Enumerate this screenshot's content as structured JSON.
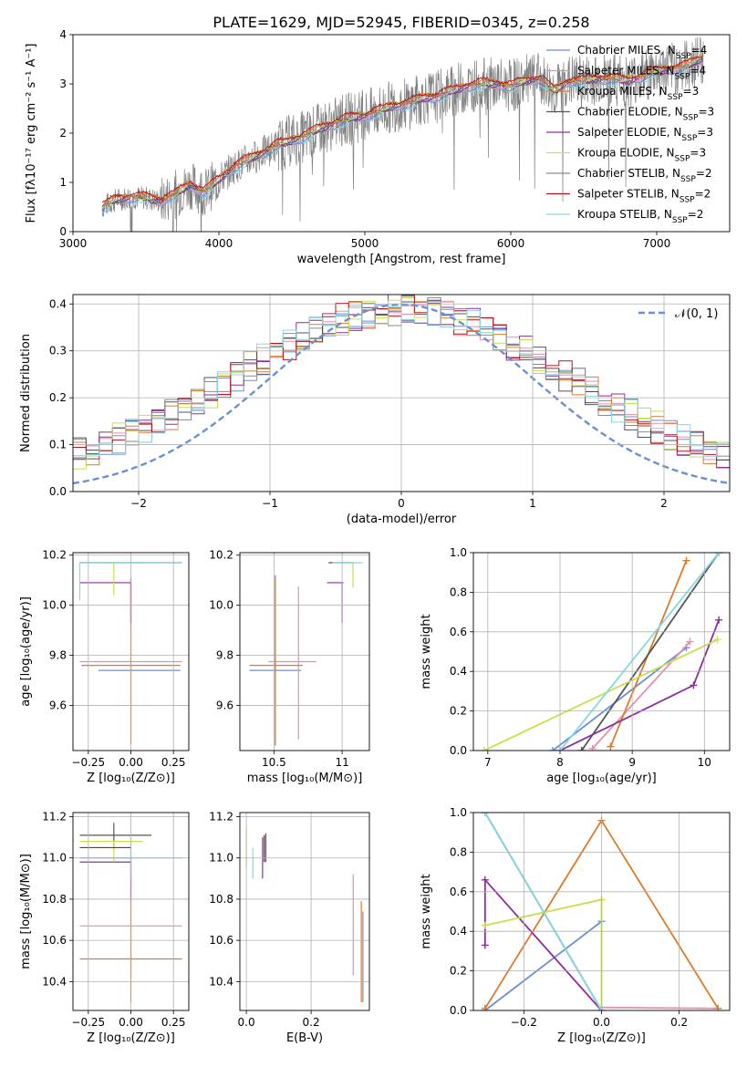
{
  "figure_title": "PLATE=1629, MJD=52945, FIBERID=0345, z=0.258",
  "colors": {
    "blue": "#6a8fd8",
    "pink": "#e88db2",
    "orange": "#e07b25",
    "dkgray": "#555555",
    "purple": "#8e2ca0",
    "lime": "#c6e14a",
    "gray": "#8a8a8a",
    "red": "#b5161a",
    "cyan": "#86d8e6"
  },
  "chart_data": [
    {
      "id": "spectrum",
      "type": "line",
      "xlabel": "wavelength [Angstrom, rest frame]",
      "ylabel": "Flux [fλ10⁻¹⁷ erg cm⁻² s⁻¹ A⁻¹]",
      "xlim": [
        3000,
        7500
      ],
      "ylim": [
        0,
        4
      ],
      "xticks": [
        3000,
        4000,
        5000,
        6000,
        7000
      ],
      "yticks": [
        0,
        1,
        2,
        3,
        4
      ],
      "legend_position": "top-right",
      "legend": [
        {
          "label": "Chabrier MILES, N_SSP=4",
          "color": "blue"
        },
        {
          "label": "Salpeter MILES, N_SSP=4",
          "color": "pink"
        },
        {
          "label": "Kroupa MILES, N_SSP=3",
          "color": "orange"
        },
        {
          "label": "Chabrier ELODIE, N_SSP=3",
          "color": "dkgray"
        },
        {
          "label": "Salpeter ELODIE, N_SSP=3",
          "color": "purple"
        },
        {
          "label": "Kroupa ELODIE, N_SSP=3",
          "color": "lime"
        },
        {
          "label": "Chabrier STELIB, N_SSP=2",
          "color": "gray"
        },
        {
          "label": "Salpeter STELIB, N_SSP=2",
          "color": "red"
        },
        {
          "label": "Kroupa STELIB, N_SSP=2",
          "color": "cyan"
        }
      ],
      "model_continuum": {
        "x": [
          3200,
          3300,
          3400,
          3500,
          3600,
          3700,
          3800,
          3900,
          4000,
          4100,
          4200,
          4300,
          4400,
          4500,
          4600,
          4700,
          4800,
          4900,
          5000,
          5100,
          5200,
          5300,
          5400,
          5500,
          5600,
          5700,
          5800,
          5900,
          6000,
          6100,
          6200,
          6300,
          6400,
          6500,
          6600,
          6700,
          6800,
          6900,
          7000,
          7100,
          7200,
          7300
        ],
        "y": [
          0.5,
          0.65,
          0.7,
          0.68,
          0.62,
          0.75,
          0.95,
          0.8,
          1.05,
          1.3,
          1.45,
          1.6,
          1.75,
          1.85,
          1.95,
          2.1,
          2.2,
          2.3,
          2.35,
          2.45,
          2.55,
          2.6,
          2.7,
          2.75,
          2.85,
          2.95,
          3.0,
          3.0,
          2.95,
          3.05,
          3.1,
          2.85,
          3.05,
          3.05,
          3.1,
          3.1,
          3.05,
          3.15,
          3.25,
          3.3,
          3.35,
          3.5
        ]
      }
    },
    {
      "id": "residuals",
      "type": "step-histogram",
      "xlabel": "(data-model)/error",
      "ylabel": "Normed distribution",
      "xlim": [
        -2.5,
        2.5
      ],
      "ylim": [
        0,
        0.42
      ],
      "xticks": [
        -2,
        -1,
        0,
        1,
        2
      ],
      "yticks": [
        0.0,
        0.1,
        0.2,
        0.3,
        0.4
      ],
      "reference_curve": {
        "label": "𝒩(0, 1)",
        "mean": 0,
        "sigma": 1,
        "color": "blue",
        "style": "dashed"
      },
      "legend_position": "top-right",
      "bin_width": 0.1
    },
    {
      "id": "age_vs_Z",
      "type": "errorbar",
      "xlabel": "Z [log₁₀(Z/Z⊙)]",
      "ylabel": "age  [log₁₀(age/yr)]",
      "xlim": [
        -0.34,
        0.34
      ],
      "ylim": [
        9.42,
        10.21
      ],
      "xticks": [
        -0.25,
        0.0,
        0.25
      ],
      "xticklabels": [
        "−0.25",
        "0.00",
        "0.25"
      ],
      "yticks": [
        9.6,
        9.8,
        10.0,
        10.2
      ],
      "points": [
        {
          "color": "blue",
          "x": 0.0,
          "y": 9.74,
          "xerr": [
            0.19,
            0.29
          ],
          "yerr": [
            0.0,
            0.0
          ]
        },
        {
          "color": "pink",
          "x": 0.0,
          "y": 9.775,
          "xerr": [
            0.3,
            0.3
          ],
          "yerr": [
            0.33,
            0.33
          ]
        },
        {
          "color": "orange",
          "x": 0.0,
          "y": 9.76,
          "xerr": [
            0.29,
            0.29
          ],
          "yerr": [
            0.31,
            0.35
          ]
        },
        {
          "color": "dkgray",
          "x": 0.0,
          "y": 10.17,
          "xerr": [
            0.3,
            0.3
          ],
          "yerr": [
            0.0,
            0.0
          ]
        },
        {
          "color": "purple",
          "x": 0.0,
          "y": 10.09,
          "xerr": [
            0.3,
            0.0
          ],
          "yerr": [
            0.16,
            0.0
          ]
        },
        {
          "color": "lime",
          "x": -0.1,
          "y": 10.17,
          "xerr": [
            0.19,
            0.22
          ],
          "yerr": [
            0.13,
            0.0
          ]
        },
        {
          "color": "cyan",
          "x": -0.3,
          "y": 10.17,
          "xerr": [
            0.0,
            0.6
          ],
          "yerr": [
            0.15,
            0.0
          ]
        }
      ]
    },
    {
      "id": "age_vs_mass",
      "type": "errorbar",
      "xlabel": "mass [log₁₀(M/M⊙)]",
      "ylabel": "",
      "xlim": [
        10.25,
        11.2
      ],
      "ylim": [
        9.42,
        10.21
      ],
      "xticks": [
        10.5,
        11.0
      ],
      "yticks": [
        9.6,
        9.8,
        10.0,
        10.2
      ],
      "points": [
        {
          "color": "blue",
          "x": 10.51,
          "y": 9.74,
          "xerr": [
            0.19,
            0.19
          ],
          "yerr": [
            0.3,
            0.38
          ]
        },
        {
          "color": "pink",
          "x": 10.68,
          "y": 9.775,
          "xerr": [
            0.22,
            0.13
          ],
          "yerr": [
            0.31,
            0.3
          ]
        },
        {
          "color": "orange",
          "x": 10.51,
          "y": 9.76,
          "xerr": [
            0.19,
            0.2
          ],
          "yerr": [
            0.32,
            0.35
          ]
        },
        {
          "color": "dkgray",
          "x": 11.0,
          "y": 10.17,
          "xerr": [
            0.1,
            0.08
          ],
          "yerr": [
            0.0,
            0.0
          ]
        },
        {
          "color": "purple",
          "x": 11.0,
          "y": 10.09,
          "xerr": [
            0.11,
            0.01
          ],
          "yerr": [
            0.16,
            0.0
          ]
        },
        {
          "color": "lime",
          "x": 11.08,
          "y": 10.17,
          "xerr": [
            0.1,
            0.02
          ],
          "yerr": [
            0.1,
            0.0
          ]
        },
        {
          "color": "cyan",
          "x": 11.0,
          "y": 10.17,
          "xerr": [
            0.07,
            0.15
          ],
          "yerr": [
            0.0,
            0.0
          ]
        }
      ]
    },
    {
      "id": "mass_weight_vs_age",
      "type": "line",
      "xlabel": "age  [log₁₀(age/yr)]",
      "ylabel": "mass weight",
      "xlim": [
        6.8,
        10.35
      ],
      "ylim": [
        0,
        1
      ],
      "xticks": [
        7,
        8,
        9,
        10
      ],
      "yticks": [
        0.0,
        0.2,
        0.4,
        0.6,
        0.8,
        1.0
      ],
      "series": [
        {
          "color": "blue",
          "x": [
            7.9,
            9.75
          ],
          "y": [
            0.0,
            0.52
          ]
        },
        {
          "color": "pink",
          "x": [
            8.45,
            9.8
          ],
          "y": [
            0.01,
            0.55
          ]
        },
        {
          "color": "orange",
          "x": [
            8.7,
            9.75
          ],
          "y": [
            0.02,
            0.96
          ]
        },
        {
          "color": "dkgray",
          "x": [
            8.3,
            10.2
          ],
          "y": [
            0.0,
            1.0
          ]
        },
        {
          "color": "purple",
          "x": [
            8.0,
            9.85,
            10.2
          ],
          "y": [
            0.0,
            0.33,
            0.66
          ]
        },
        {
          "color": "lime",
          "x": [
            6.95,
            10.18
          ],
          "y": [
            0.0,
            0.56
          ]
        },
        {
          "color": "cyan",
          "x": [
            8.0,
            10.2
          ],
          "y": [
            0.0,
            1.0
          ]
        }
      ]
    },
    {
      "id": "mass_vs_Z",
      "type": "errorbar",
      "xlabel": "Z [log₁₀(Z/Z⊙)]",
      "ylabel": "mass [log₁₀(M/M⊙)]",
      "xlim": [
        -0.34,
        0.34
      ],
      "ylim": [
        10.26,
        11.22
      ],
      "xticks": [
        -0.25,
        0.0,
        0.25
      ],
      "xticklabels": [
        "−0.25",
        "0.00",
        "0.25"
      ],
      "yticks": [
        10.4,
        10.6,
        10.8,
        11.0,
        11.2
      ],
      "points": [
        {
          "color": "blue",
          "x": 0.0,
          "y": 11.0,
          "xerr": [
            0.3,
            0.0
          ],
          "yerr": [
            0.08,
            0.02
          ]
        },
        {
          "color": "pink",
          "x": 0.0,
          "y": 10.67,
          "xerr": [
            0.3,
            0.3
          ],
          "yerr": [
            0.25,
            0.25
          ]
        },
        {
          "color": "orange",
          "x": 0.0,
          "y": 10.51,
          "xerr": [
            0.3,
            0.3
          ],
          "yerr": [
            0.21,
            0.29
          ]
        },
        {
          "color": "dkgray",
          "x": -0.1,
          "y": 11.11,
          "xerr": [
            0.2,
            0.22
          ],
          "yerr": [
            0.07,
            0.06
          ]
        },
        {
          "color": "purple",
          "x": 0.0,
          "y": 10.98,
          "xerr": [
            0.3,
            0.0
          ],
          "yerr": [
            0.18,
            0.0
          ]
        },
        {
          "color": "lime",
          "x": -0.1,
          "y": 11.08,
          "xerr": [
            0.2,
            0.17
          ],
          "yerr": [
            0.1,
            0.0
          ]
        },
        {
          "color": "cyan",
          "x": 0.0,
          "y": 11.0,
          "xerr": [
            0.3,
            0.3
          ],
          "yerr": [
            0.1,
            0.1
          ]
        },
        {
          "color": "red",
          "x": -0.1,
          "y": 11.05,
          "xerr": [
            0.2,
            0.1
          ],
          "yerr": [
            0.0,
            0.0
          ]
        }
      ]
    },
    {
      "id": "mass_vs_ebv",
      "type": "errorbar",
      "xlabel": "E(B-V)",
      "ylabel": "",
      "xlim": [
        -0.02,
        0.38
      ],
      "ylim": [
        10.26,
        11.22
      ],
      "xticks": [
        0.0,
        0.2
      ],
      "xticklabels": [
        "0.0",
        "0.2"
      ],
      "yticks": [
        10.4,
        10.6,
        10.8,
        11.0,
        11.2
      ],
      "points": [
        {
          "color": "blue",
          "x": 0.36,
          "y": 10.52,
          "xerr": [
            0.0,
            0.0
          ],
          "yerr": [
            0.22,
            0.22
          ]
        },
        {
          "color": "pink",
          "x": 0.33,
          "y": 10.68,
          "xerr": [
            0.0,
            0.0
          ],
          "yerr": [
            0.25,
            0.24
          ]
        },
        {
          "color": "orange",
          "x": 0.355,
          "y": 10.53,
          "xerr": [
            0.0,
            0.0
          ],
          "yerr": [
            0.23,
            0.26
          ]
        },
        {
          "color": "dkgray",
          "x": 0.06,
          "y": 11.05,
          "xerr": [
            0.0,
            0.0
          ],
          "yerr": [
            0.07,
            0.07
          ]
        },
        {
          "color": "purple",
          "x": 0.05,
          "y": 11.0,
          "xerr": [
            0.0,
            0.0
          ],
          "yerr": [
            0.1,
            0.1
          ]
        },
        {
          "color": "lime",
          "x": 0.0,
          "y": 11.05,
          "xerr": [
            0.0,
            0.0
          ],
          "yerr": [
            0.1,
            0.1
          ]
        },
        {
          "color": "cyan",
          "x": 0.02,
          "y": 11.0,
          "xerr": [
            0.0,
            0.0
          ],
          "yerr": [
            0.1,
            0.05
          ]
        },
        {
          "color": "red",
          "x": 0.055,
          "y": 11.04,
          "xerr": [
            0.0,
            0.0
          ],
          "yerr": [
            0.06,
            0.07
          ]
        }
      ]
    },
    {
      "id": "mass_weight_vs_Z",
      "type": "line",
      "xlabel": "Z [log₁₀(Z/Z⊙)]",
      "ylabel": "mass weight",
      "xlim": [
        -0.33,
        0.33
      ],
      "ylim": [
        0,
        1
      ],
      "xticks": [
        -0.2,
        0.0,
        0.2
      ],
      "xticklabels": [
        "−0.2",
        "0.0",
        "0.2"
      ],
      "yticks": [
        0.0,
        0.2,
        0.4,
        0.6,
        0.8,
        1.0
      ],
      "series": [
        {
          "color": "blue",
          "x": [
            -0.3,
            0.0
          ],
          "y": [
            0.0,
            0.45
          ]
        },
        {
          "color": "pink",
          "x": [
            0.0,
            0.3
          ],
          "y": [
            0.015,
            0.01
          ]
        },
        {
          "color": "orange",
          "x": [
            -0.3,
            0.0,
            0.3
          ],
          "y": [
            0.01,
            0.96,
            0.01
          ]
        },
        {
          "color": "purple",
          "x": [
            -0.3,
            -0.3,
            0.0
          ],
          "y": [
            0.33,
            0.66,
            0.0
          ]
        },
        {
          "color": "lime",
          "x": [
            -0.3,
            0.0,
            0.0
          ],
          "y": [
            0.43,
            0.56,
            0.0
          ]
        },
        {
          "color": "dkgray",
          "x": [
            -0.3,
            0.0
          ],
          "y": [
            1.0,
            0.0
          ]
        },
        {
          "color": "cyan",
          "x": [
            -0.3,
            0.0
          ],
          "y": [
            1.0,
            0.0
          ]
        }
      ]
    }
  ]
}
